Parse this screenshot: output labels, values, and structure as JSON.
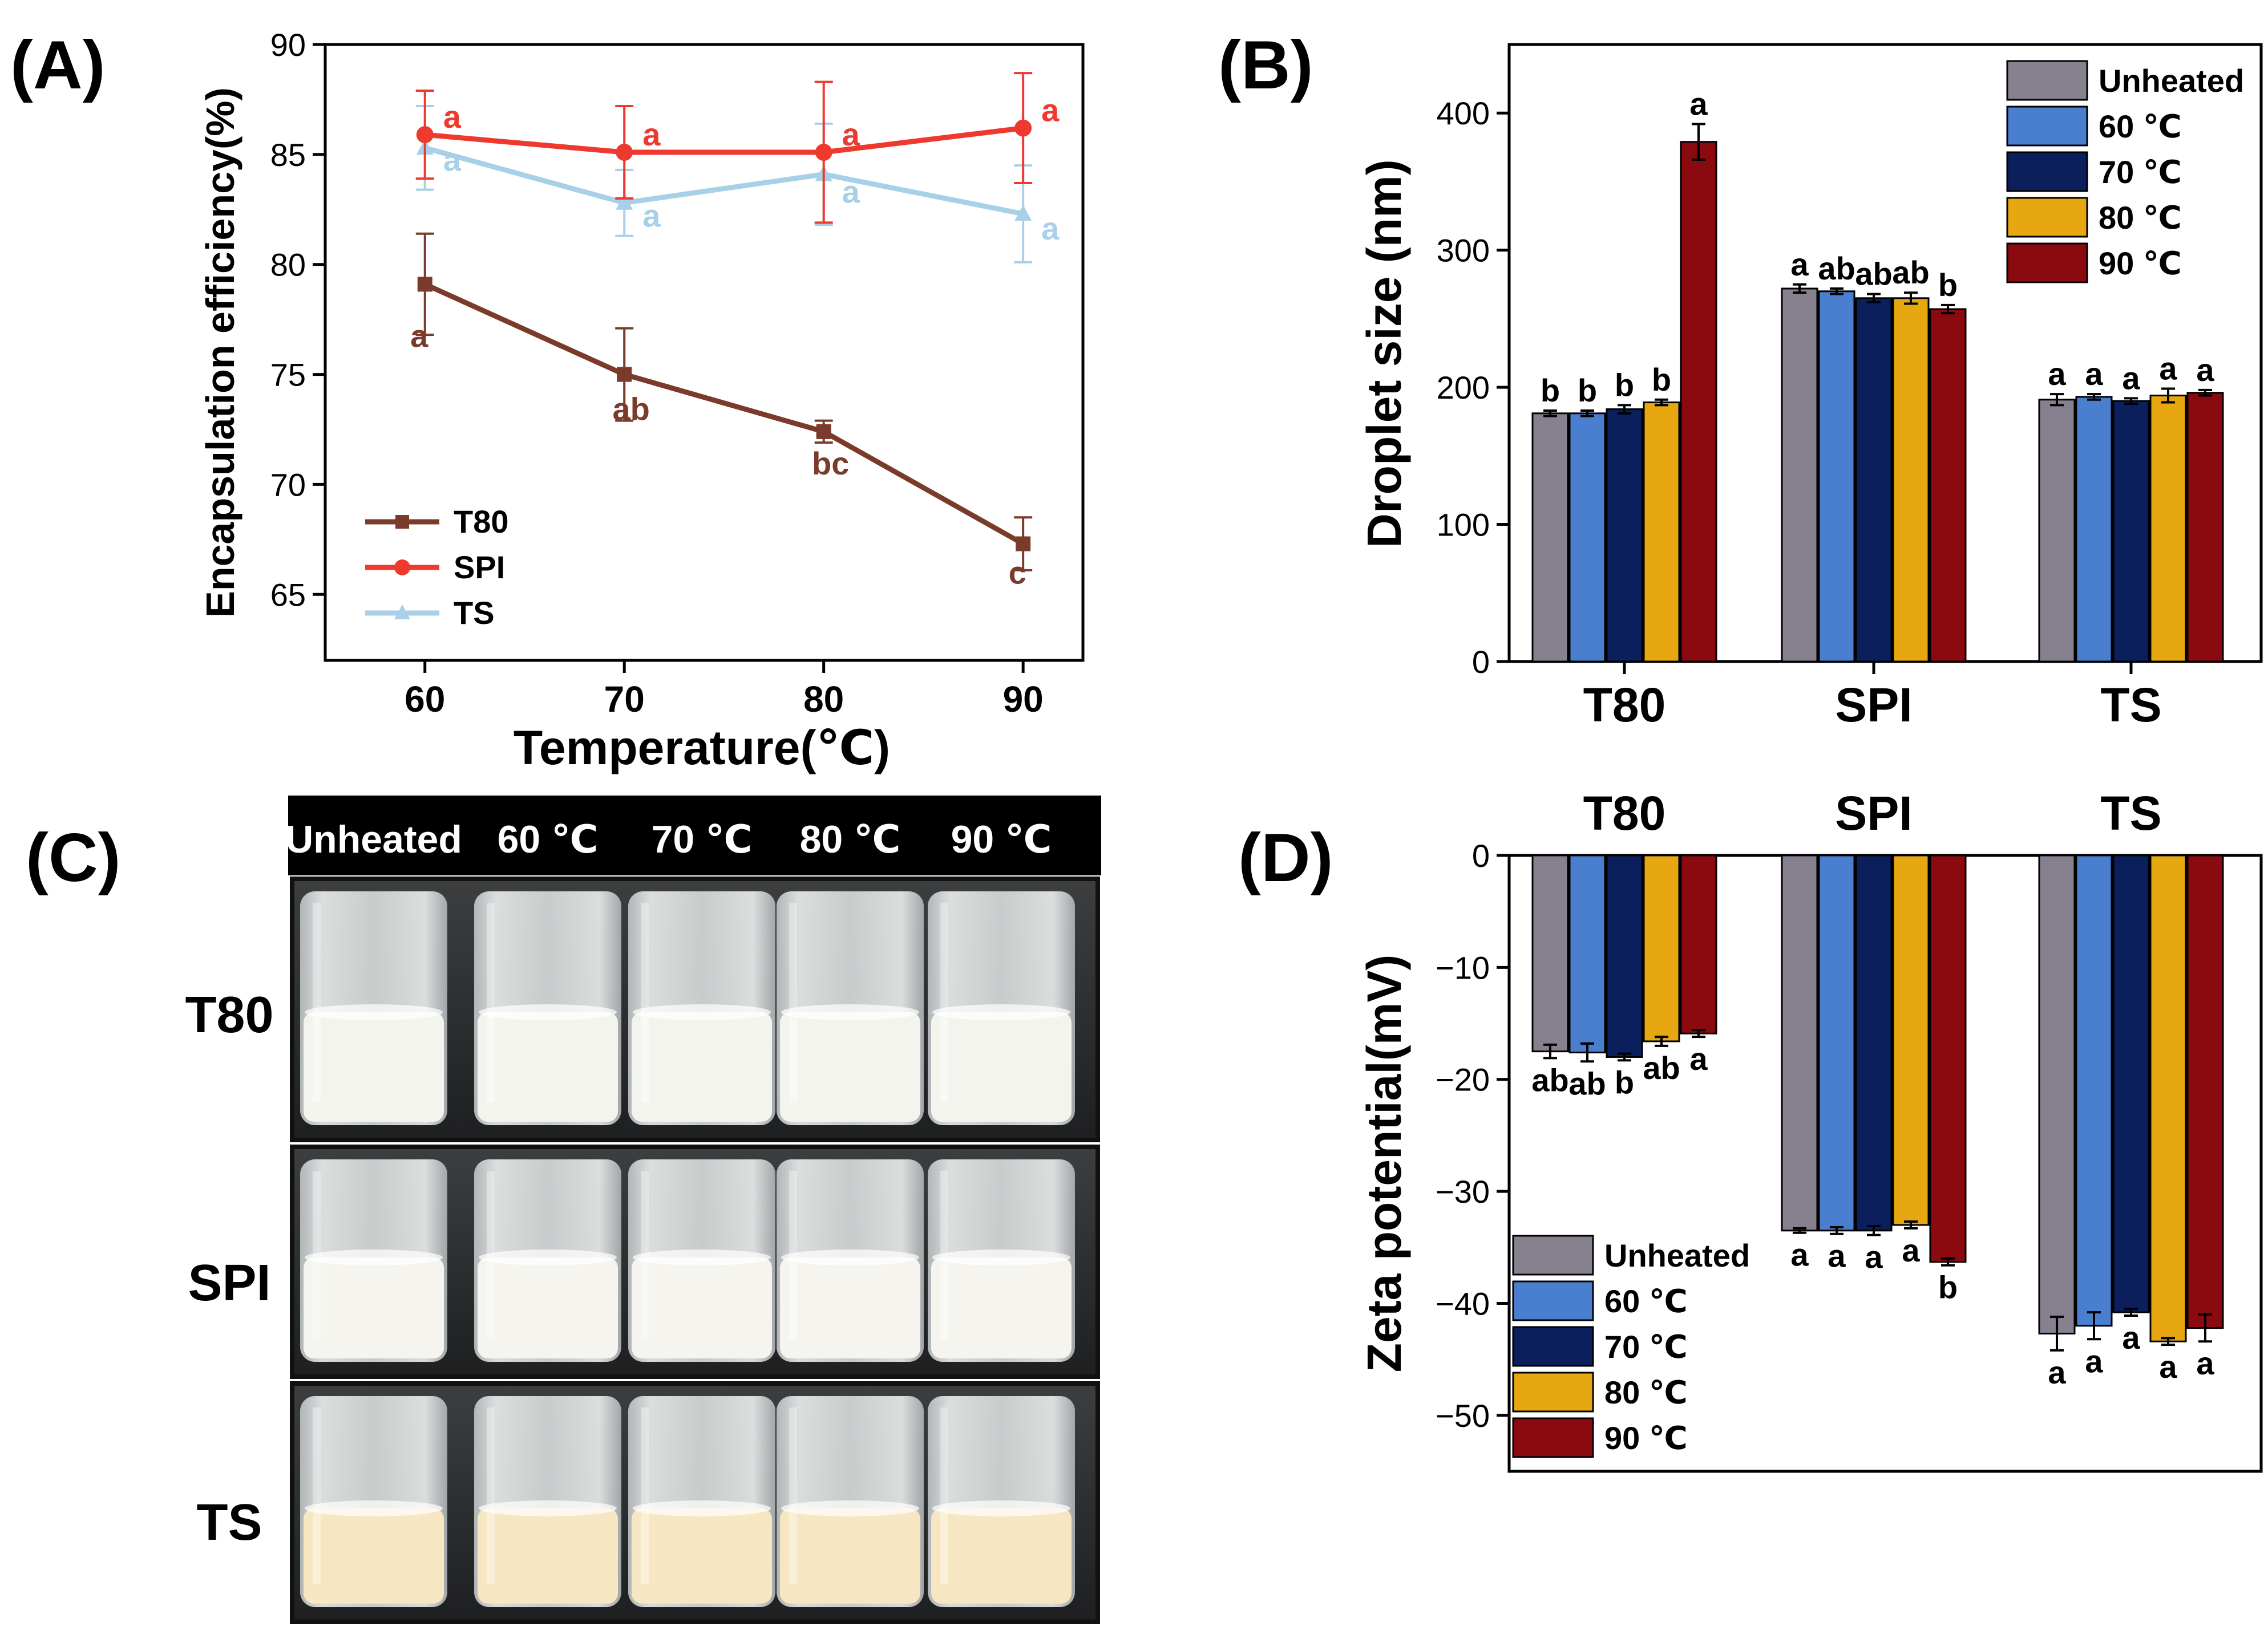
{
  "panels": {
    "a": "(A)",
    "b": "(B)",
    "c": "(C)",
    "d": "(D)"
  },
  "chart_data": [
    {
      "panel": "(A)",
      "type": "line",
      "xlabel": "Temperature(℃)",
      "ylabel": "Encapsulation efficiency(%)",
      "x": [
        60,
        70,
        80,
        90
      ],
      "x_ticks": [
        "60",
        "70",
        "80",
        "90"
      ],
      "xlim": [
        55,
        93
      ],
      "ylim": [
        62,
        90
      ],
      "y_ticks": [
        "65",
        "70",
        "75",
        "80",
        "85",
        "90"
      ],
      "legend_position": "bottom-left",
      "series": [
        {
          "name": "T80",
          "color": "#7b3b2a",
          "marker": "square",
          "values": [
            79.1,
            75.0,
            72.4,
            67.3
          ],
          "errors": [
            2.3,
            2.1,
            0.5,
            1.2
          ],
          "letters": [
            "a",
            "ab",
            "bc",
            "c"
          ]
        },
        {
          "name": "SPI",
          "color": "#ee3a2e",
          "marker": "circle",
          "values": [
            85.9,
            85.1,
            85.1,
            86.2
          ],
          "errors": [
            2.0,
            2.1,
            3.2,
            2.5
          ],
          "letters": [
            "a",
            "a",
            "a",
            "a"
          ]
        },
        {
          "name": "TS",
          "color": "#a8d0e8",
          "marker": "triangle",
          "values": [
            85.3,
            82.8,
            84.1,
            82.3
          ],
          "errors": [
            1.9,
            1.5,
            2.3,
            2.2
          ],
          "letters": [
            "a",
            "a",
            "a",
            "a"
          ]
        }
      ]
    },
    {
      "panel": "(B)",
      "type": "bar",
      "ylabel": "Droplet size (nm)",
      "categories": [
        "T80",
        "SPI",
        "TS"
      ],
      "ylim": [
        0,
        450
      ],
      "y_ticks": [
        "0",
        "100",
        "200",
        "300",
        "400"
      ],
      "legend_position": "top-right",
      "series": [
        {
          "name": "Unheated",
          "color": "#87808f",
          "values": [
            181,
            272,
            191
          ],
          "errors": [
            2,
            3,
            4
          ],
          "letters": [
            "b",
            "a",
            "a"
          ]
        },
        {
          "name": "60 ℃",
          "color": "#4a7fd0",
          "values": [
            181,
            270,
            193
          ],
          "errors": [
            2,
            2,
            2
          ],
          "letters": [
            "b",
            "ab",
            "a"
          ]
        },
        {
          "name": "70 ℃",
          "color": "#0b1f5c",
          "values": [
            184,
            265,
            190
          ],
          "errors": [
            3,
            3,
            2
          ],
          "letters": [
            "b",
            "ab",
            "a"
          ]
        },
        {
          "name": "80 ℃",
          "color": "#e6a711",
          "values": [
            189,
            265,
            194
          ],
          "errors": [
            2,
            4,
            5
          ],
          "letters": [
            "b",
            "ab",
            "a"
          ]
        },
        {
          "name": "90 ℃",
          "color": "#8b0a0f",
          "values": [
            379,
            257,
            196
          ],
          "errors": [
            13,
            3,
            2
          ],
          "letters": [
            "a",
            "b",
            "a"
          ]
        }
      ]
    },
    {
      "panel": "(D)",
      "type": "bar",
      "ylabel": "Zeta potential(mV)",
      "categories": [
        "T80",
        "SPI",
        "TS"
      ],
      "ylim": [
        -55,
        0
      ],
      "y_ticks": [
        "0",
        "−10",
        "−20",
        "−30",
        "−40",
        "−50"
      ],
      "legend_position": "bottom-left",
      "series": [
        {
          "name": "Unheated",
          "color": "#87808f",
          "values": [
            -17.5,
            -33.5,
            -42.7
          ],
          "errors": [
            0.6,
            0.2,
            1.5
          ],
          "letters": [
            "ab",
            "a",
            "a"
          ]
        },
        {
          "name": "60 ℃",
          "color": "#4a7fd0",
          "values": [
            -17.6,
            -33.5,
            -42.0
          ],
          "errors": [
            0.8,
            0.3,
            1.2
          ],
          "letters": [
            "ab",
            "a",
            "a"
          ]
        },
        {
          "name": "70 ℃",
          "color": "#0b1f5c",
          "values": [
            -18.0,
            -33.5,
            -40.8
          ],
          "errors": [
            0.3,
            0.4,
            0.3
          ],
          "letters": [
            "b",
            "a",
            "a"
          ]
        },
        {
          "name": "80 ℃",
          "color": "#e6a711",
          "values": [
            -16.6,
            -33.0,
            -43.4
          ],
          "errors": [
            0.4,
            0.3,
            0.3
          ],
          "letters": [
            "ab",
            "a",
            "a"
          ]
        },
        {
          "name": "90 ℃",
          "color": "#8b0a0f",
          "values": [
            -15.9,
            -36.3,
            -42.2
          ],
          "errors": [
            0.3,
            0.3,
            1.2
          ],
          "letters": [
            "a",
            "b",
            "a"
          ]
        }
      ]
    }
  ],
  "photo": {
    "panel": "(C)",
    "column_headers": [
      "Unheated",
      "60 ℃",
      "70 ℃",
      "80 ℃",
      "90 ℃"
    ],
    "row_labels": [
      "T80",
      "SPI",
      "TS"
    ],
    "row_fill_colors": [
      "#f4f4ef",
      "#f5f4ee",
      "#f7e6c2"
    ]
  }
}
